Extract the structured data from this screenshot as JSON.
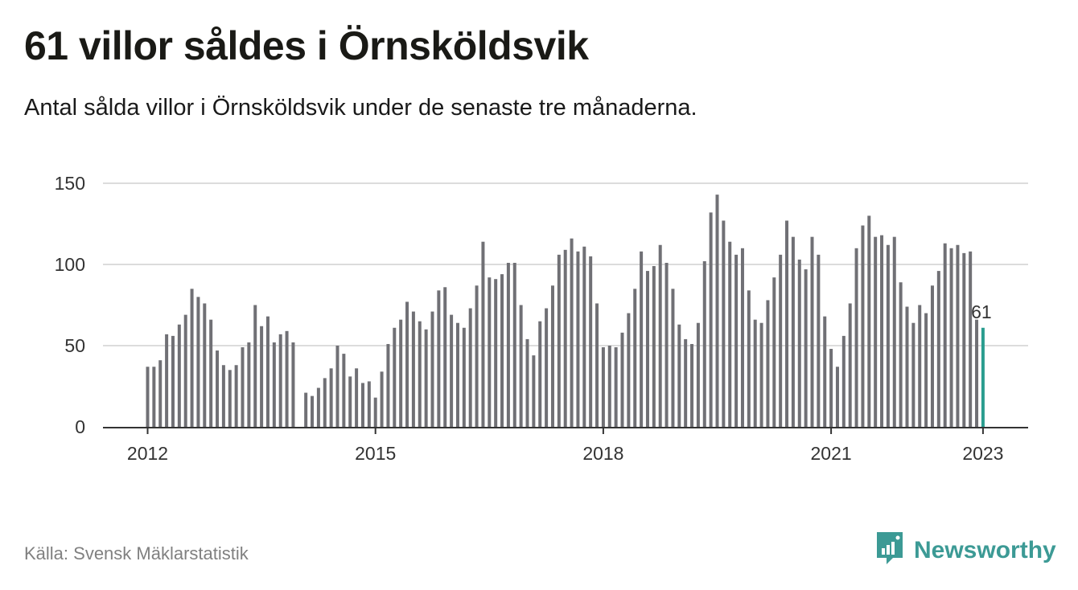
{
  "title": "61 villor såldes i Örnsköldsvik",
  "subtitle": "Antal sålda villor i Örnsköldsvik under de senaste tre månaderna.",
  "source": "Källa: Svensk Mäklarstatistik",
  "brand": {
    "name": "Newsworthy",
    "icon": "newsworthy-logo-icon",
    "color": "#3c9a95"
  },
  "colors": {
    "bar": "#707075",
    "highlight": "#2a9d8f",
    "grid": "#dcdcdc",
    "axis": "#333333"
  },
  "chart_data": {
    "type": "bar",
    "title": "61 villor såldes i Örnsköldsvik",
    "xlabel": "",
    "ylabel": "",
    "ylim": [
      0,
      150
    ],
    "yticks": [
      0,
      50,
      100,
      150
    ],
    "x_ticks": [
      "2012",
      "2015",
      "2018",
      "2021",
      "2023"
    ],
    "grid": true,
    "x_start": "2012-01",
    "highlight_label": "61",
    "values": [
      37,
      37,
      41,
      57,
      56,
      63,
      69,
      85,
      80,
      76,
      66,
      47,
      38,
      35,
      38,
      49,
      52,
      75,
      62,
      68,
      52,
      57,
      59,
      52,
      null,
      21,
      19,
      24,
      30,
      36,
      50,
      45,
      31,
      36,
      27,
      28,
      18,
      34,
      51,
      61,
      66,
      77,
      71,
      65,
      60,
      71,
      84,
      86,
      69,
      64,
      61,
      73,
      87,
      114,
      92,
      91,
      94,
      101,
      101,
      75,
      54,
      44,
      65,
      73,
      87,
      106,
      109,
      116,
      108,
      111,
      105,
      76,
      49,
      50,
      49,
      58,
      70,
      85,
      108,
      96,
      99,
      112,
      101,
      85,
      63,
      54,
      51,
      64,
      102,
      132,
      143,
      127,
      114,
      106,
      110,
      84,
      66,
      64,
      78,
      92,
      106,
      127,
      117,
      103,
      97,
      117,
      106,
      68,
      48,
      37,
      56,
      76,
      110,
      124,
      130,
      117,
      118,
      112,
      117,
      89,
      74,
      64,
      75,
      70,
      87,
      96,
      113,
      110,
      112,
      107,
      108,
      66,
      61
    ]
  }
}
